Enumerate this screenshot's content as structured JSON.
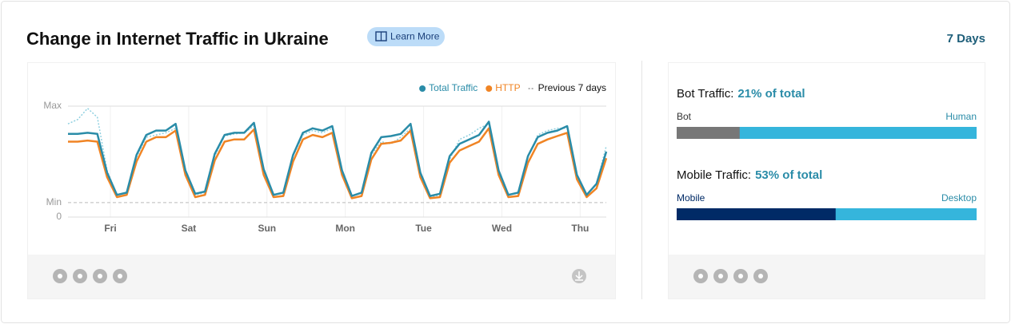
{
  "header": {
    "title": "Change in Internet Traffic in Ukraine",
    "learn_more": "Learn More",
    "range": "7 Days"
  },
  "chart_data": {
    "type": "line",
    "x": [
      0,
      3,
      6,
      9,
      12,
      15,
      18,
      21,
      24,
      27,
      30,
      33,
      36,
      39,
      42,
      45,
      48,
      51,
      54,
      57,
      60,
      63,
      66,
      69,
      72,
      75,
      78,
      81,
      84,
      87,
      90,
      93,
      96,
      99,
      102,
      105,
      108,
      111,
      114,
      117,
      120,
      123,
      126,
      129,
      132,
      135,
      138,
      141,
      144,
      147,
      150,
      153,
      156,
      159,
      162,
      165
    ],
    "xlim": [
      0,
      165
    ],
    "xticks": [
      {
        "value": 13,
        "label": "Fri"
      },
      {
        "value": 37,
        "label": "Sat"
      },
      {
        "value": 61,
        "label": "Sun"
      },
      {
        "value": 85,
        "label": "Mon"
      },
      {
        "value": 109,
        "label": "Tue"
      },
      {
        "value": 133,
        "label": "Wed"
      },
      {
        "value": 157,
        "label": "Thu"
      }
    ],
    "ylim": [
      0,
      100
    ],
    "yticks": [
      {
        "value": 100,
        "label": "Max"
      },
      {
        "value": 13,
        "label": "Min"
      },
      {
        "value": 0,
        "label": "0"
      }
    ],
    "legend": "top-right",
    "series": [
      {
        "name": "Total Traffic",
        "color": "#2a8ca8",
        "style": "solid",
        "values": [
          75,
          75,
          76,
          75,
          40,
          20,
          22,
          56,
          74,
          78,
          78,
          84,
          42,
          21,
          23,
          57,
          74,
          76,
          76,
          85,
          43,
          20,
          22,
          56,
          76,
          80,
          78,
          82,
          42,
          19,
          22,
          58,
          72,
          73,
          75,
          84,
          40,
          19,
          21,
          55,
          66,
          70,
          74,
          86,
          42,
          20,
          22,
          55,
          72,
          76,
          78,
          82,
          38,
          20,
          30,
          59
        ]
      },
      {
        "name": "HTTP",
        "color": "#f08424",
        "style": "solid",
        "values": [
          68,
          68,
          69,
          68,
          36,
          18,
          20,
          50,
          68,
          72,
          72,
          78,
          38,
          18,
          20,
          51,
          68,
          70,
          70,
          79,
          38,
          18,
          19,
          50,
          70,
          74,
          72,
          76,
          38,
          17,
          19,
          52,
          66,
          67,
          69,
          78,
          36,
          17,
          18,
          49,
          60,
          64,
          68,
          80,
          38,
          18,
          19,
          49,
          66,
          70,
          73,
          76,
          34,
          18,
          26,
          53
        ]
      },
      {
        "name": "Previous 7 days",
        "color": "#8fd0e0",
        "style": "dotted",
        "values": [
          84,
          88,
          98,
          90,
          42,
          20,
          22,
          54,
          72,
          74,
          76,
          80,
          40,
          20,
          22,
          55,
          73,
          75,
          76,
          82,
          42,
          20,
          22,
          55,
          74,
          78,
          76,
          80,
          40,
          19,
          22,
          56,
          68,
          66,
          72,
          80,
          40,
          18,
          20,
          52,
          70,
          74,
          80,
          84,
          42,
          20,
          22,
          54,
          74,
          78,
          80,
          80,
          38,
          20,
          30,
          64
        ]
      }
    ]
  },
  "shares": [
    {
      "label": "Bot Traffic:",
      "value": 21,
      "value_label": "21% of total",
      "left": "Bot",
      "right": "Human",
      "color": "#777777",
      "rest_color": "#35b5dc"
    },
    {
      "label": "Mobile Traffic:",
      "value": 53,
      "value_label": "53% of total",
      "left": "Mobile",
      "right": "Desktop",
      "color": "#002a66",
      "rest_color": "#35b5dc"
    }
  ]
}
